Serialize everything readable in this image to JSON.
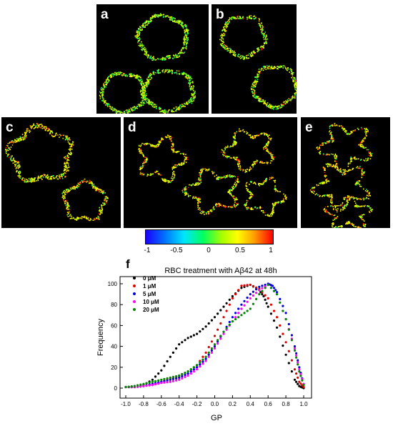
{
  "panels": {
    "a": {
      "label": "a"
    },
    "b": {
      "label": "b"
    },
    "c": {
      "label": "c"
    },
    "d": {
      "label": "d"
    },
    "e": {
      "label": "e"
    },
    "f": {
      "label": "f"
    }
  },
  "colorbar": {
    "ticks": [
      "-1",
      "-0.5",
      "0",
      "0.5",
      "1"
    ],
    "stops": [
      "#1a00ff",
      "#0073ff",
      "#00e5ff",
      "#00ff60",
      "#a8ff00",
      "#ffff00",
      "#ffa000",
      "#ff0000"
    ]
  },
  "chart_data": {
    "type": "scatter",
    "title": "RBC treatment with Aβ42 at 48h",
    "xlabel": "GP",
    "ylabel": "Frequency",
    "xlim": [
      -1.0,
      1.0
    ],
    "ylim": [
      0,
      100
    ],
    "xticks": [
      "-1.0",
      "-0.8",
      "-0.6",
      "-0.4",
      "-0.2",
      "0.0",
      "0.2",
      "0.4",
      "0.6",
      "0.8",
      "1.0"
    ],
    "yticks": [
      "0",
      "20",
      "40",
      "60",
      "80",
      "100"
    ],
    "legend_position": "top-left",
    "grid": false,
    "series": [
      {
        "name": "0 μM",
        "color": "#000000",
        "x": [
          -1.0,
          -0.9,
          -0.8,
          -0.7,
          -0.6,
          -0.5,
          -0.4,
          -0.3,
          -0.2,
          -0.1,
          0.0,
          0.1,
          0.2,
          0.3,
          0.4,
          0.5,
          0.55,
          0.6,
          0.7,
          0.8,
          0.9,
          0.95,
          1.0
        ],
        "y": [
          1,
          1,
          3,
          8,
          17,
          30,
          42,
          48,
          52,
          59,
          68,
          78,
          88,
          96,
          99,
          94,
          88,
          78,
          58,
          32,
          8,
          2,
          0
        ]
      },
      {
        "name": "1 μM",
        "color": "#e00000",
        "x": [
          -1.0,
          -0.9,
          -0.8,
          -0.7,
          -0.6,
          -0.5,
          -0.4,
          -0.3,
          -0.2,
          -0.1,
          0.0,
          0.1,
          0.2,
          0.3,
          0.4,
          0.5,
          0.6,
          0.7,
          0.8,
          0.9,
          0.95,
          1.0
        ],
        "y": [
          1,
          1,
          2,
          4,
          6,
          9,
          12,
          16,
          22,
          34,
          50,
          68,
          86,
          98,
          99,
          95,
          86,
          68,
          44,
          18,
          6,
          1
        ]
      },
      {
        "name": "5 μM",
        "color": "#0000e0",
        "x": [
          -1.0,
          -0.9,
          -0.8,
          -0.7,
          -0.6,
          -0.5,
          -0.4,
          -0.3,
          -0.2,
          -0.1,
          0.0,
          0.1,
          0.2,
          0.3,
          0.4,
          0.5,
          0.6,
          0.65,
          0.7,
          0.8,
          0.9,
          0.95,
          1.0
        ],
        "y": [
          1,
          1,
          2,
          4,
          6,
          8,
          10,
          14,
          20,
          28,
          40,
          54,
          68,
          80,
          90,
          97,
          100,
          98,
          92,
          72,
          40,
          20,
          4
        ]
      },
      {
        "name": "10 μM",
        "color": "#ff00ff",
        "x": [
          -1.0,
          -0.9,
          -0.8,
          -0.7,
          -0.6,
          -0.5,
          -0.4,
          -0.3,
          -0.2,
          -0.1,
          0.0,
          0.1,
          0.2,
          0.3,
          0.4,
          0.5,
          0.6,
          0.7,
          0.8,
          0.9,
          0.95,
          1.0
        ],
        "y": [
          1,
          1,
          2,
          3,
          5,
          6,
          8,
          12,
          18,
          26,
          38,
          52,
          64,
          76,
          86,
          94,
          99,
          90,
          66,
          38,
          18,
          4
        ]
      },
      {
        "name": "20 μM",
        "color": "#008800",
        "x": [
          -1.0,
          -0.9,
          -0.8,
          -0.7,
          -0.6,
          -0.5,
          -0.4,
          -0.3,
          -0.2,
          -0.1,
          0.0,
          0.1,
          0.2,
          0.3,
          0.4,
          0.5,
          0.6,
          0.7,
          0.8,
          0.9,
          0.95,
          1.0
        ],
        "y": [
          1,
          2,
          4,
          6,
          8,
          10,
          12,
          16,
          22,
          30,
          42,
          54,
          64,
          70,
          76,
          90,
          99,
          90,
          66,
          36,
          16,
          3
        ]
      }
    ]
  }
}
